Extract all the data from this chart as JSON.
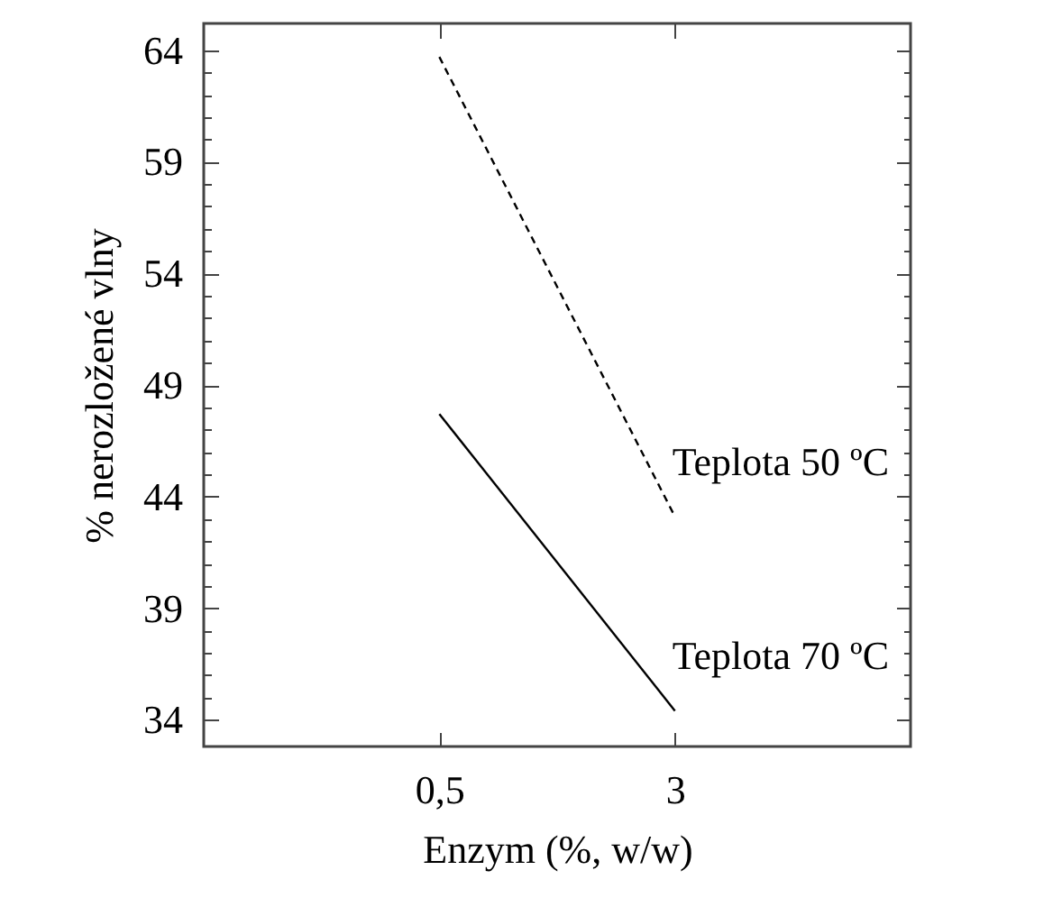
{
  "chart_data": {
    "type": "line",
    "xlabel": "Enzym (%, w/w)",
    "ylabel": "% nerozložené vlny",
    "categories": [
      "0,5",
      "3"
    ],
    "series": [
      {
        "name": "Teplota 50 ºC",
        "color": "#000000",
        "line_style": "dashed",
        "values": [
          63.7,
          43.1
        ]
      },
      {
        "name": "Teplota 70 ºC",
        "color": "#000000",
        "line_style": "solid",
        "values": [
          47.7,
          34.4
        ]
      }
    ],
    "ylim": [
      32.8,
      65.2
    ],
    "yticks": [
      34,
      {
        "value": 35,
        "label": null
      },
      {
        "value": 36,
        "label": null
      },
      {
        "value": 37,
        "label": null
      },
      {
        "value": 38,
        "label": null
      },
      39,
      {
        "value": 40,
        "label": null
      },
      {
        "value": 41,
        "label": null
      },
      {
        "value": 42,
        "label": null
      },
      {
        "value": 43,
        "label": null
      },
      44,
      {
        "value": 45,
        "label": null
      },
      {
        "value": 46,
        "label": null
      },
      {
        "value": 47,
        "label": null
      },
      {
        "value": 48,
        "label": null
      },
      49,
      {
        "value": 50,
        "label": null
      },
      {
        "value": 51,
        "label": null
      },
      {
        "value": 52,
        "label": null
      },
      {
        "value": 53,
        "label": null
      },
      54,
      {
        "value": 55,
        "label": null
      },
      {
        "value": 56,
        "label": null
      },
      {
        "value": 57,
        "label": null
      },
      {
        "value": 58,
        "label": null
      },
      59,
      {
        "value": 60,
        "label": null
      },
      {
        "value": 61,
        "label": null
      },
      {
        "value": 62,
        "label": null
      },
      {
        "value": 63,
        "label": null
      },
      64
    ],
    "grid": false,
    "marker": "none"
  }
}
